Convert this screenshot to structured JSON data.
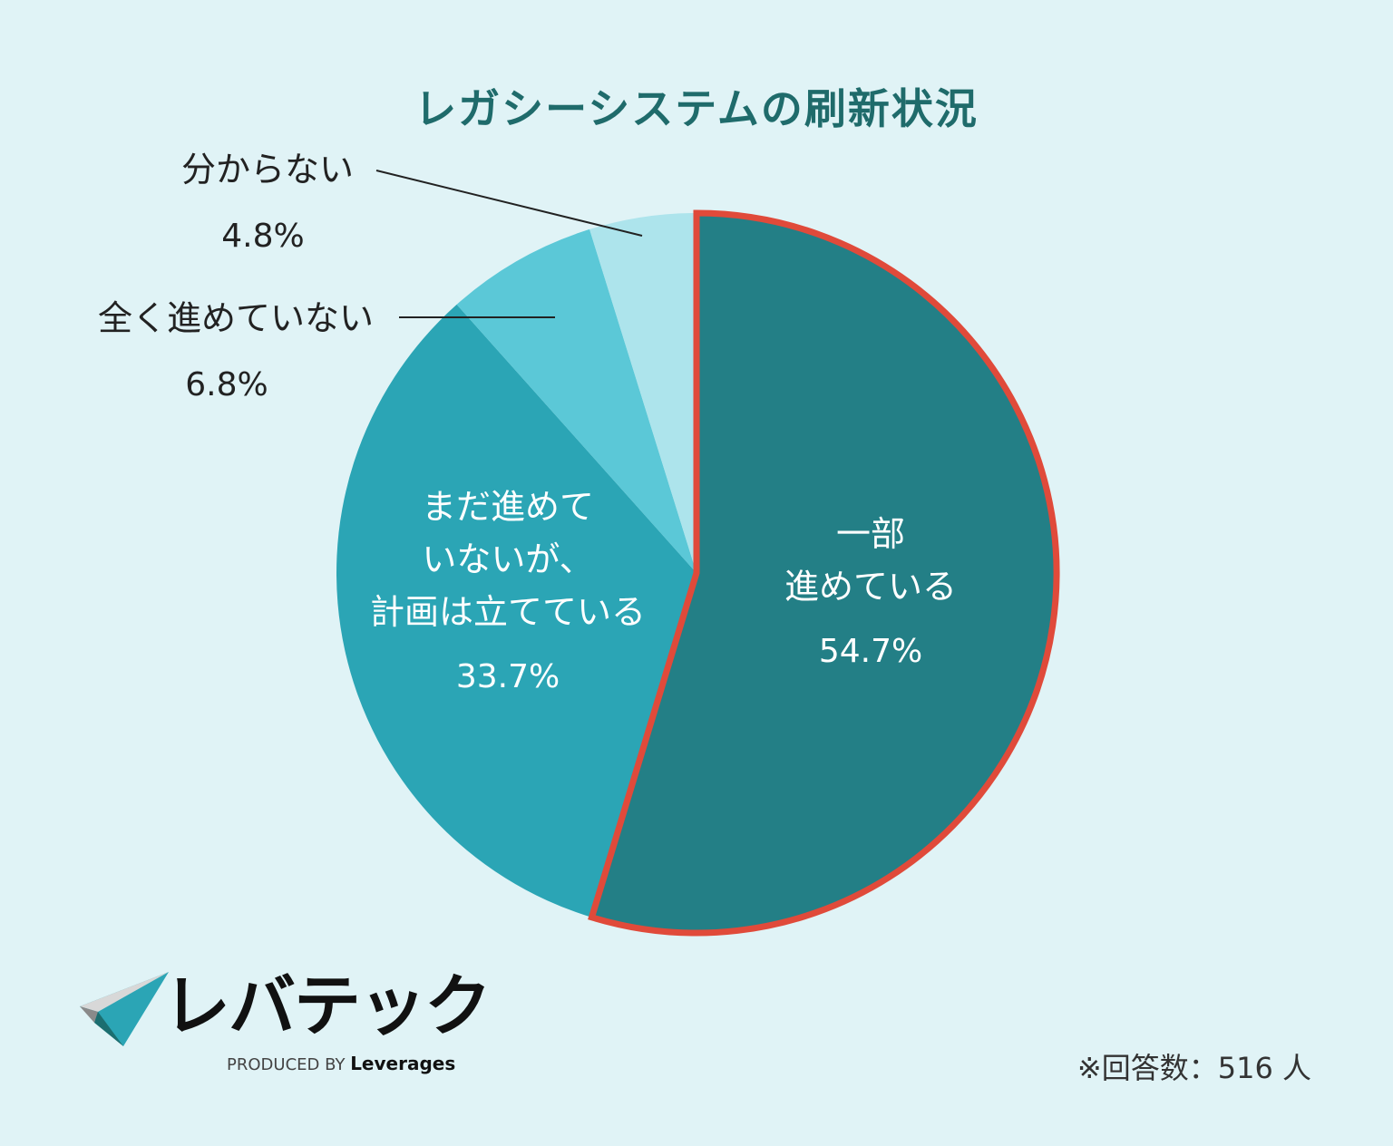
{
  "chart_data": {
    "type": "pie",
    "title": "レガシーシステムの刷新状況",
    "slices": [
      {
        "label_lines": [
          "一部",
          "進めている"
        ],
        "value": 54.7,
        "pct_text": "54.7%",
        "color": "#237f86",
        "highlight": "#e04a3a"
      },
      {
        "label_lines": [
          "まだ進めて",
          "いないが、",
          "計画は立てている"
        ],
        "value": 33.7,
        "pct_text": "33.7%",
        "color": "#2ba5b5"
      },
      {
        "label_lines": [
          "全く進めていない"
        ],
        "value": 6.8,
        "pct_text": "6.8%",
        "color": "#5bc8d7"
      },
      {
        "label_lines": [
          "分からない"
        ],
        "value": 4.8,
        "pct_text": "4.8%",
        "color": "#ade4ec"
      }
    ],
    "start": "top",
    "direction": "clockwise"
  },
  "footer": {
    "note": "※回答数：516 人",
    "brand": "レバテック",
    "produced_by": "PRODUCED BY",
    "company": "Leverages"
  },
  "colors": {
    "background": "#e0f3f6",
    "title": "#1f6b6b"
  }
}
